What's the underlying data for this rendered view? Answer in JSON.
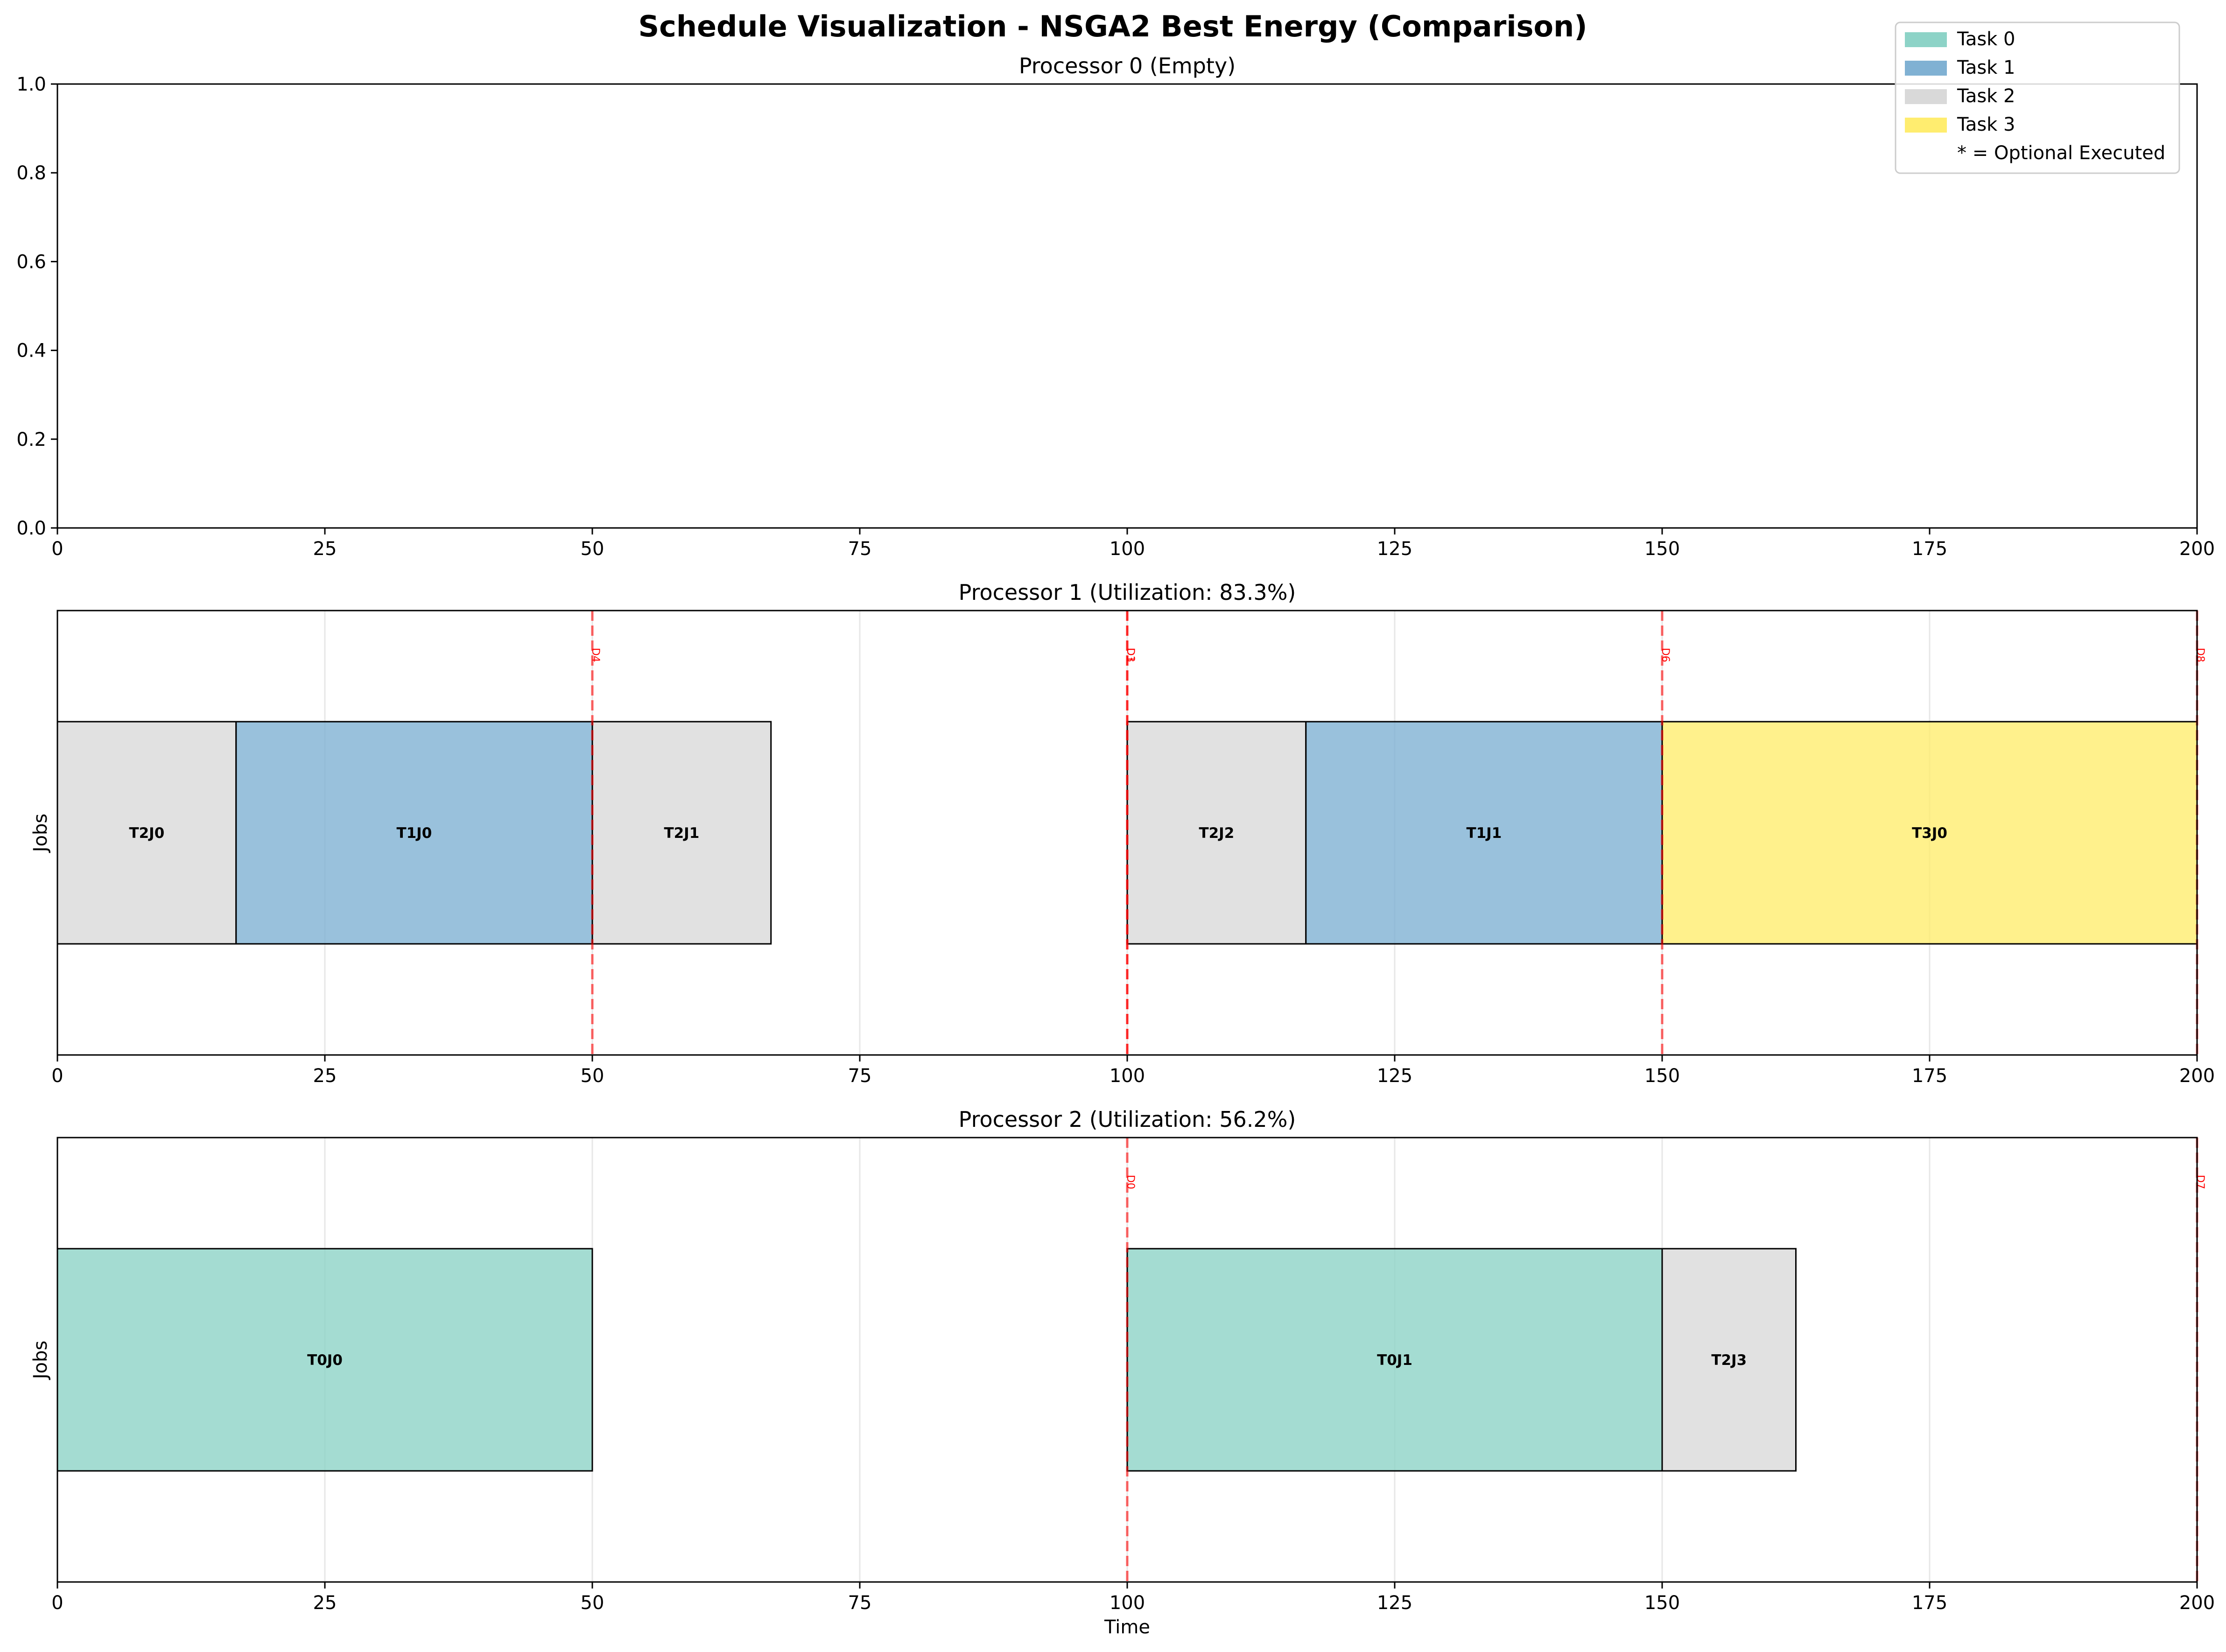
{
  "figure_title": "Schedule Visualization - NSGA2 Best Energy (Comparison)",
  "legend": {
    "items": [
      {
        "label": "Task 0",
        "color": "#8dd3c7"
      },
      {
        "label": "Task 1",
        "color": "#80b1d3"
      },
      {
        "label": "Task 2",
        "color": "#d9d9d9"
      },
      {
        "label": "Task 3",
        "color": "#ffed6f"
      }
    ],
    "note": "* = Optional Executed",
    "placement": "top-right"
  },
  "chart_data": [
    {
      "type": "gantt",
      "title": "Processor 0 (Empty)",
      "xlabel": "",
      "ylabel": "",
      "xlim": [
        0,
        200
      ],
      "ylim": [
        0,
        1
      ],
      "xticks": [
        "0",
        "25",
        "50",
        "75",
        "100",
        "125",
        "150",
        "175",
        "200"
      ],
      "yticks": [
        "0.0",
        "0.2",
        "0.4",
        "0.6",
        "0.8",
        "1.0"
      ],
      "grid": false,
      "jobs": [],
      "deadlines": []
    },
    {
      "type": "gantt",
      "title": "Processor 1 (Utilization: 83.3%)",
      "xlabel": "",
      "ylabel": "Jobs",
      "xlim": [
        0,
        200
      ],
      "xticks": [
        "0",
        "25",
        "50",
        "75",
        "100",
        "125",
        "150",
        "175",
        "200"
      ],
      "grid": true,
      "jobs": [
        {
          "label": "T2J0",
          "task": 2,
          "start": 0,
          "end": 16.7
        },
        {
          "label": "T1J0",
          "task": 1,
          "start": 16.7,
          "end": 50
        },
        {
          "label": "T2J1",
          "task": 2,
          "start": 50,
          "end": 66.7
        },
        {
          "label": "T2J2",
          "task": 2,
          "start": 100,
          "end": 116.7
        },
        {
          "label": "T1J1",
          "task": 1,
          "start": 116.7,
          "end": 150
        },
        {
          "label": "T3J0",
          "task": 3,
          "start": 150,
          "end": 200
        }
      ],
      "deadlines": [
        {
          "x": 50,
          "label": "D4"
        },
        {
          "x": 100,
          "label": "D3"
        },
        {
          "x": 100,
          "label": "D1"
        },
        {
          "x": 150,
          "label": "D6"
        },
        {
          "x": 200,
          "label": "D8"
        }
      ]
    },
    {
      "type": "gantt",
      "title": "Processor 2 (Utilization: 56.2%)",
      "xlabel": "Time",
      "ylabel": "Jobs",
      "xlim": [
        0,
        200
      ],
      "xticks": [
        "0",
        "25",
        "50",
        "75",
        "100",
        "125",
        "150",
        "175",
        "200"
      ],
      "grid": true,
      "jobs": [
        {
          "label": "T0J0",
          "task": 0,
          "start": 0,
          "end": 50
        },
        {
          "label": "T0J1",
          "task": 0,
          "start": 100,
          "end": 150
        },
        {
          "label": "T2J3",
          "task": 2,
          "start": 150,
          "end": 162.5
        }
      ],
      "deadlines": [
        {
          "x": 100,
          "label": "D0"
        },
        {
          "x": 200,
          "label": "D7"
        }
      ]
    }
  ]
}
